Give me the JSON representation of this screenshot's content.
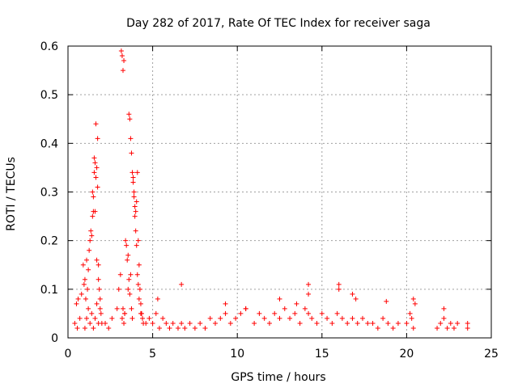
{
  "chart_data": {
    "type": "scatter",
    "title": "Day 282 of 2017, Rate Of TEC Index for receiver saga",
    "xlabel": "GPS time / hours",
    "ylabel": "ROTI / TECUs",
    "xlim": [
      0,
      25
    ],
    "ylim": [
      0,
      0.6
    ],
    "x_ticks": [
      0,
      5,
      10,
      15,
      20,
      25
    ],
    "x_tick_labels": [
      "0",
      "5",
      "10",
      "15",
      "20",
      "25"
    ],
    "y_ticks": [
      0,
      0.1,
      0.2,
      0.3,
      0.4,
      0.5,
      0.6
    ],
    "y_tick_labels": [
      "0",
      "0.1",
      "0.2",
      "0.3",
      "0.4",
      "0.5",
      "0.6"
    ],
    "grid": true,
    "legend": "none",
    "marker": "plus",
    "color": "#ff0000",
    "series": [
      {
        "x": [
          0.4,
          0.5,
          0.55,
          0.6,
          0.7,
          0.8,
          0.9,
          0.95,
          1.0,
          1.05,
          1.1,
          1.15,
          1.2,
          1.25,
          1.3,
          1.35,
          1.4,
          1.45,
          1.5,
          1.55,
          1.6,
          1.65,
          1.7,
          1.75,
          1.8,
          1.85,
          1.9,
          1.95,
          2.0,
          1.0,
          1.1,
          1.2,
          1.3,
          1.4,
          1.5,
          1.6,
          1.7,
          1.8,
          1.9,
          1.45,
          1.55,
          1.65,
          1.75,
          1.5,
          1.6,
          1.7,
          1.8,
          2.2,
          2.4,
          2.6,
          2.9,
          3.0,
          3.1,
          3.15,
          3.2,
          3.25,
          3.3,
          3.35,
          3.4,
          3.45,
          3.5,
          3.55,
          3.6,
          3.65,
          3.7,
          3.75,
          3.8,
          3.85,
          3.9,
          3.95,
          4.0,
          4.05,
          4.1,
          4.15,
          4.2,
          4.25,
          4.3,
          4.35,
          4.4,
          4.45,
          3.2,
          3.25,
          3.3,
          3.35,
          3.55,
          3.6,
          3.65,
          3.7,
          3.75,
          3.8,
          3.85,
          3.9,
          3.95,
          4.0,
          4.05,
          4.1,
          4.15,
          4.2,
          4.3,
          4.6,
          4.8,
          5.0,
          5.2,
          5.4,
          5.6,
          5.8,
          6.0,
          6.2,
          6.5,
          6.7,
          6.9,
          7.2,
          7.5,
          7.8,
          8.1,
          8.4,
          8.7,
          9.0,
          9.3,
          9.6,
          9.9,
          10.2,
          10.5,
          5.3,
          6.7,
          9.3,
          10.5,
          11.0,
          11.3,
          11.6,
          11.9,
          12.2,
          12.5,
          12.8,
          13.1,
          13.4,
          13.7,
          14.0,
          14.2,
          14.4,
          14.7,
          15.0,
          15.3,
          15.6,
          15.9,
          16.2,
          16.5,
          16.8,
          17.1,
          17.4,
          17.7,
          12.5,
          13.5,
          14.2,
          14.2,
          16.0,
          16.0,
          16.8,
          17.0,
          18.0,
          18.3,
          18.6,
          18.9,
          19.2,
          19.5,
          18.8,
          20.0,
          20.2,
          20.4,
          20.5,
          20.3,
          20.4,
          21.8,
          22.0,
          22.2,
          22.4,
          22.6,
          22.8,
          23.0,
          22.2,
          23.6,
          23.6
        ],
        "y": [
          0.03,
          0.07,
          0.02,
          0.08,
          0.04,
          0.09,
          0.15,
          0.11,
          0.12,
          0.08,
          0.16,
          0.1,
          0.14,
          0.18,
          0.2,
          0.22,
          0.21,
          0.3,
          0.26,
          0.34,
          0.36,
          0.33,
          0.35,
          0.31,
          0.15,
          0.1,
          0.08,
          0.05,
          0.03,
          0.02,
          0.04,
          0.06,
          0.03,
          0.05,
          0.02,
          0.04,
          0.07,
          0.03,
          0.06,
          0.25,
          0.37,
          0.44,
          0.41,
          0.29,
          0.26,
          0.16,
          0.12,
          0.03,
          0.02,
          0.04,
          0.06,
          0.1,
          0.13,
          0.59,
          0.58,
          0.55,
          0.57,
          0.05,
          0.2,
          0.19,
          0.16,
          0.17,
          0.46,
          0.45,
          0.41,
          0.38,
          0.34,
          0.33,
          0.3,
          0.27,
          0.26,
          0.28,
          0.34,
          0.2,
          0.15,
          0.1,
          0.07,
          0.05,
          0.04,
          0.03,
          0.04,
          0.06,
          0.03,
          0.05,
          0.1,
          0.12,
          0.09,
          0.13,
          0.06,
          0.04,
          0.32,
          0.29,
          0.25,
          0.22,
          0.19,
          0.13,
          0.11,
          0.08,
          0.05,
          0.03,
          0.04,
          0.03,
          0.05,
          0.02,
          0.04,
          0.03,
          0.02,
          0.03,
          0.02,
          0.03,
          0.02,
          0.03,
          0.02,
          0.03,
          0.02,
          0.04,
          0.03,
          0.04,
          0.05,
          0.03,
          0.04,
          0.05,
          0.06,
          0.08,
          0.11,
          0.07,
          0.06,
          0.03,
          0.05,
          0.04,
          0.03,
          0.05,
          0.04,
          0.06,
          0.04,
          0.05,
          0.03,
          0.06,
          0.05,
          0.04,
          0.03,
          0.05,
          0.04,
          0.03,
          0.05,
          0.04,
          0.03,
          0.04,
          0.03,
          0.04,
          0.03,
          0.08,
          0.07,
          0.11,
          0.09,
          0.11,
          0.1,
          0.09,
          0.08,
          0.03,
          0.02,
          0.04,
          0.03,
          0.02,
          0.03,
          0.075,
          0.03,
          0.05,
          0.08,
          0.07,
          0.04,
          0.02,
          0.02,
          0.03,
          0.04,
          0.02,
          0.03,
          0.02,
          0.03,
          0.06,
          0.03,
          0.02
        ]
      }
    ]
  }
}
